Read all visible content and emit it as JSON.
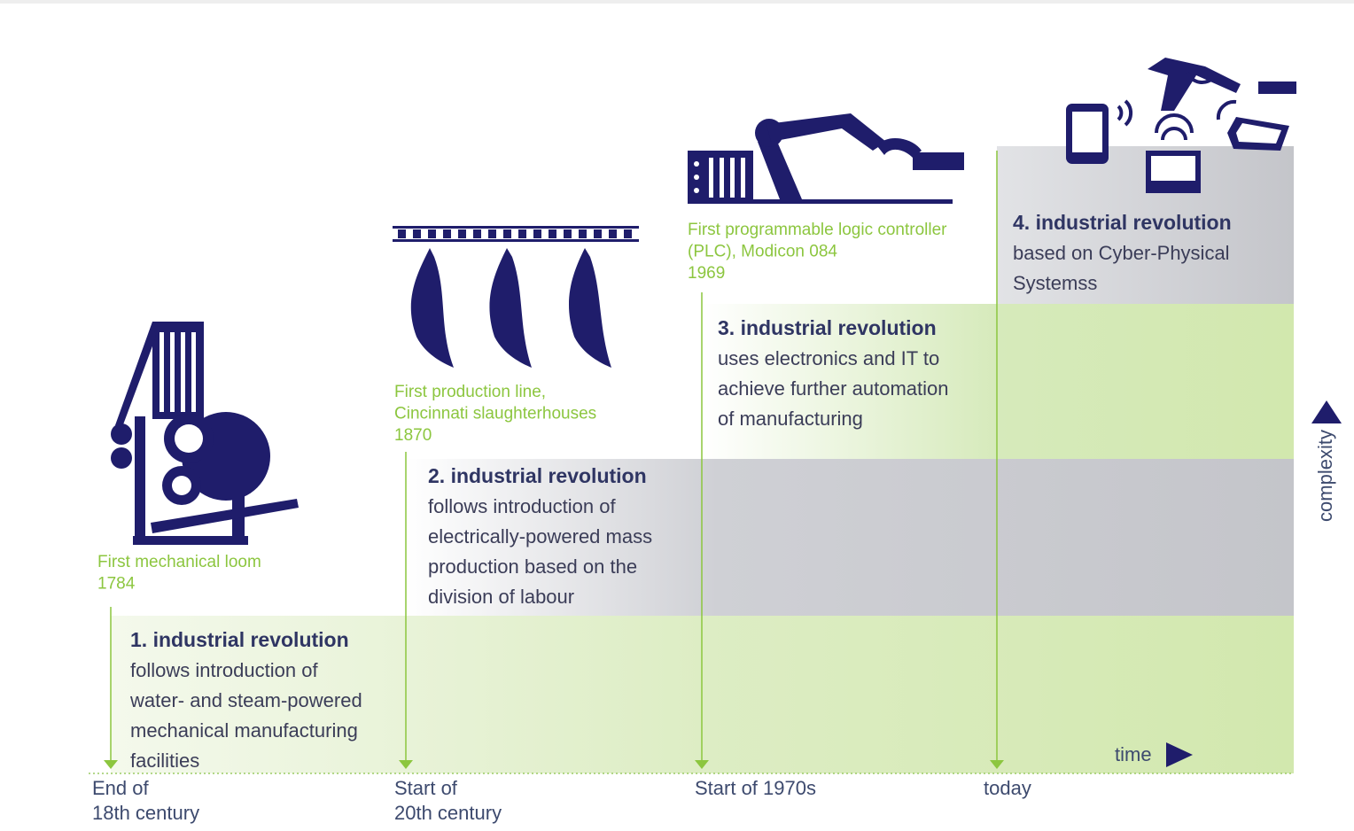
{
  "stages": [
    {
      "milestone": [
        "First mechanical loom",
        "1784"
      ],
      "title": "1. industrial revolution",
      "description": [
        "follows introduction of",
        "water- and steam-powered",
        "mechanical manufacturing",
        "facilities"
      ],
      "time": [
        "End of",
        "18th century"
      ]
    },
    {
      "milestone": [
        "First production line,",
        "Cincinnati slaughterhouses",
        "1870"
      ],
      "title": "2. industrial revolution",
      "description": [
        "follows introduction of",
        "electrically-powered mass",
        "production based on the",
        "division of labour"
      ],
      "time": [
        "Start of",
        "20th century"
      ]
    },
    {
      "milestone": [
        "First programmable logic controller",
        "(PLC), Modicon 084",
        "1969"
      ],
      "title": "3. industrial revolution",
      "description": [
        "uses electronics and IT to",
        "achieve further automation",
        "of manufacturing"
      ],
      "time": [
        "Start of 1970s"
      ]
    },
    {
      "title": "4. industrial revolution",
      "description": [
        "based on Cyber-Physical",
        "Systemss"
      ],
      "time": [
        "today"
      ]
    }
  ],
  "axis": {
    "x": "time",
    "y": "complexity"
  }
}
